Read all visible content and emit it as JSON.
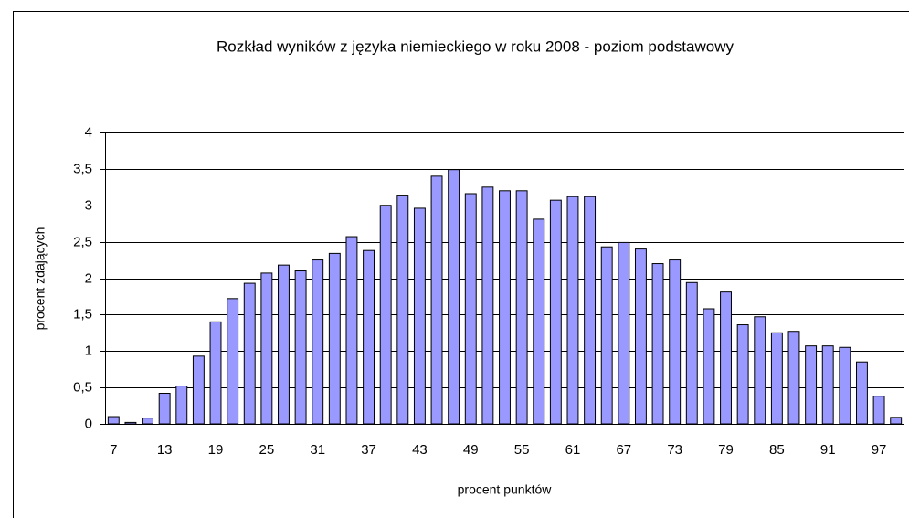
{
  "chart_data": {
    "type": "bar",
    "title": "Rozkład wyników z języka niemieckiego w roku 2008 - poziom podstawowy",
    "x_label": "procent punktów",
    "y_label": "procent zdających",
    "categories": [
      "7",
      null,
      null,
      "13",
      null,
      null,
      "19",
      null,
      null,
      "25",
      null,
      null,
      "31",
      null,
      null,
      "37",
      null,
      null,
      "43",
      null,
      null,
      "49",
      null,
      null,
      "55",
      null,
      null,
      "61",
      null,
      null,
      "67",
      null,
      null,
      "73",
      null,
      null,
      "79",
      null,
      null,
      "85",
      null,
      null,
      "91",
      null,
      null,
      "97",
      null
    ],
    "values": [
      0.1,
      0.02,
      0.08,
      0.42,
      0.52,
      0.93,
      1.4,
      1.72,
      1.93,
      2.07,
      2.18,
      2.1,
      2.25,
      2.34,
      2.57,
      2.38,
      3.0,
      3.14,
      2.96,
      3.4,
      3.49,
      3.16,
      3.25,
      3.2,
      3.2,
      2.81,
      3.07,
      3.12,
      3.12,
      2.43,
      2.49,
      2.4,
      2.2,
      2.25,
      1.94,
      1.58,
      1.81,
      1.36,
      1.47,
      1.25,
      1.27,
      1.07,
      1.07,
      1.05,
      0.85,
      0.38,
      0.09
    ],
    "color": "#9999ff",
    "ylim": [
      0,
      4
    ],
    "yticks": [
      0,
      {
        "value": 0.5,
        "label": "0,5"
      },
      1,
      {
        "value": 1.5,
        "label": "1,5"
      },
      2,
      {
        "value": 2.5,
        "label": "2,5"
      },
      3,
      {
        "value": 3.5,
        "label": "3,5"
      },
      4
    ],
    "grid": true
  }
}
